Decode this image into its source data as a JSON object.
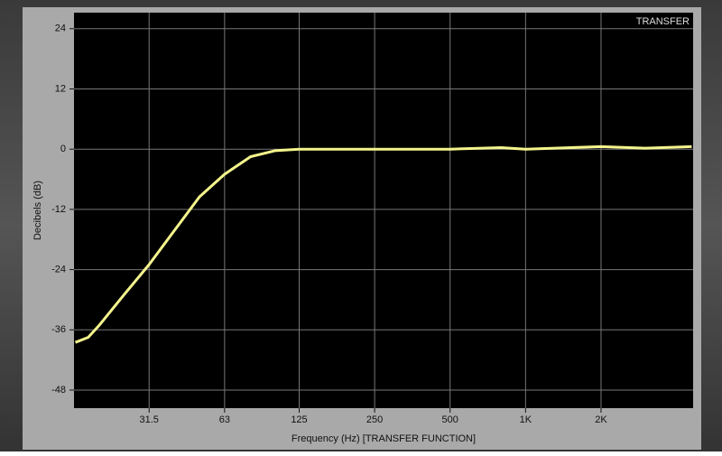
{
  "chart_data": {
    "type": "line",
    "title": "TRANSFER",
    "x_label": "Frequency (Hz) [TRANSFER FUNCTION]",
    "y_label": "Decibels (dB)",
    "x_scale": "log",
    "x": [
      16,
      18,
      20,
      25,
      31.5,
      40,
      50,
      63,
      80,
      100,
      125,
      250,
      500,
      800,
      1000,
      2000,
      3000,
      4600
    ],
    "series": [
      {
        "name": "Transfer",
        "color": "#f4f48c",
        "values": [
          -38.5,
          -37.5,
          -35,
          -29,
          -23,
          -16,
          -9.5,
          -5,
          -1.5,
          -0.3,
          0,
          0,
          0,
          0.3,
          0,
          0.5,
          0.2,
          0.5
        ]
      }
    ],
    "xlim": [
      15.8,
      4660
    ],
    "xticks": [
      31.5,
      63,
      125,
      250,
      500,
      {
        "value": 1000,
        "label": "1K"
      },
      {
        "value": 2000,
        "label": "2K"
      }
    ],
    "ylim": [
      -51.6,
      27.2
    ],
    "yticks": [
      24,
      12,
      0,
      -12,
      -24,
      -36,
      -48
    ],
    "grid": true
  }
}
